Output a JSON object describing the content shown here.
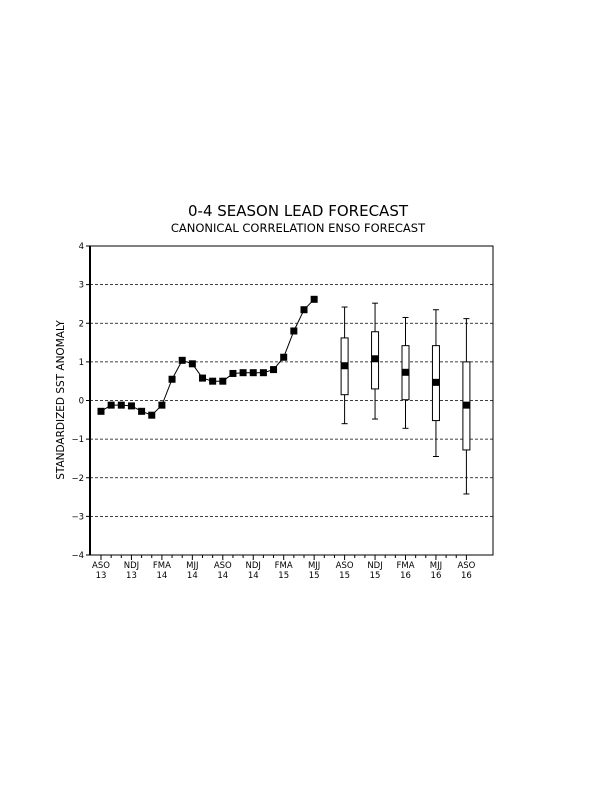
{
  "chart_data": {
    "type": "line",
    "title": "0-4 SEASON LEAD FORECAST",
    "subtitle": "CANONICAL CORRELATION ENSO FORECAST",
    "ylabel": "STANDARDIZED SST ANOMALY",
    "xlabel": "",
    "ylim": [
      -4,
      4
    ],
    "yticks": [
      "-4",
      "-3",
      "-2",
      "-1",
      "0",
      "1",
      "2",
      "3",
      "4"
    ],
    "grid": "horizontal dashed lines at each y tick",
    "x_tick_labels": [
      {
        "season": "ASO",
        "year": "13"
      },
      {
        "season": "NDJ",
        "year": "13"
      },
      {
        "season": "FMA",
        "year": "14"
      },
      {
        "season": "MJJ",
        "year": "14"
      },
      {
        "season": "ASO",
        "year": "14"
      },
      {
        "season": "NDJ",
        "year": "14"
      },
      {
        "season": "FMA",
        "year": "15"
      },
      {
        "season": "MJJ",
        "year": "15"
      },
      {
        "season": "ASO",
        "year": "15"
      },
      {
        "season": "NDJ",
        "year": "15"
      },
      {
        "season": "FMA",
        "year": "16"
      },
      {
        "season": "MJJ",
        "year": "16"
      },
      {
        "season": "ASO",
        "year": "16"
      }
    ],
    "series": [
      {
        "kind": "observed",
        "values": [
          -0.28,
          -0.12,
          -0.12,
          -0.14,
          -0.28,
          -0.38,
          -0.12,
          0.55,
          1.04,
          0.95,
          0.58,
          0.5,
          0.5,
          0.7,
          0.72,
          0.72,
          0.72,
          0.8,
          1.12,
          1.8,
          2.35,
          2.62
        ]
      },
      {
        "kind": "forecast",
        "values": [
          {
            "mean": 0.9,
            "box_low": 0.15,
            "box_high": 1.62,
            "whisker_low": -0.6,
            "whisker_high": 2.42
          },
          {
            "mean": 1.08,
            "box_low": 0.3,
            "box_high": 1.78,
            "whisker_low": -0.48,
            "whisker_high": 2.52
          },
          {
            "mean": 0.73,
            "box_low": 0.02,
            "box_high": 1.42,
            "whisker_low": -0.72,
            "whisker_high": 2.15
          },
          {
            "mean": 0.47,
            "box_low": -0.52,
            "box_high": 1.42,
            "whisker_low": -1.45,
            "whisker_high": 2.35
          },
          {
            "mean": -0.12,
            "box_low": -1.28,
            "box_high": 1.0,
            "whisker_low": -2.42,
            "whisker_high": 2.12
          }
        ]
      }
    ]
  }
}
